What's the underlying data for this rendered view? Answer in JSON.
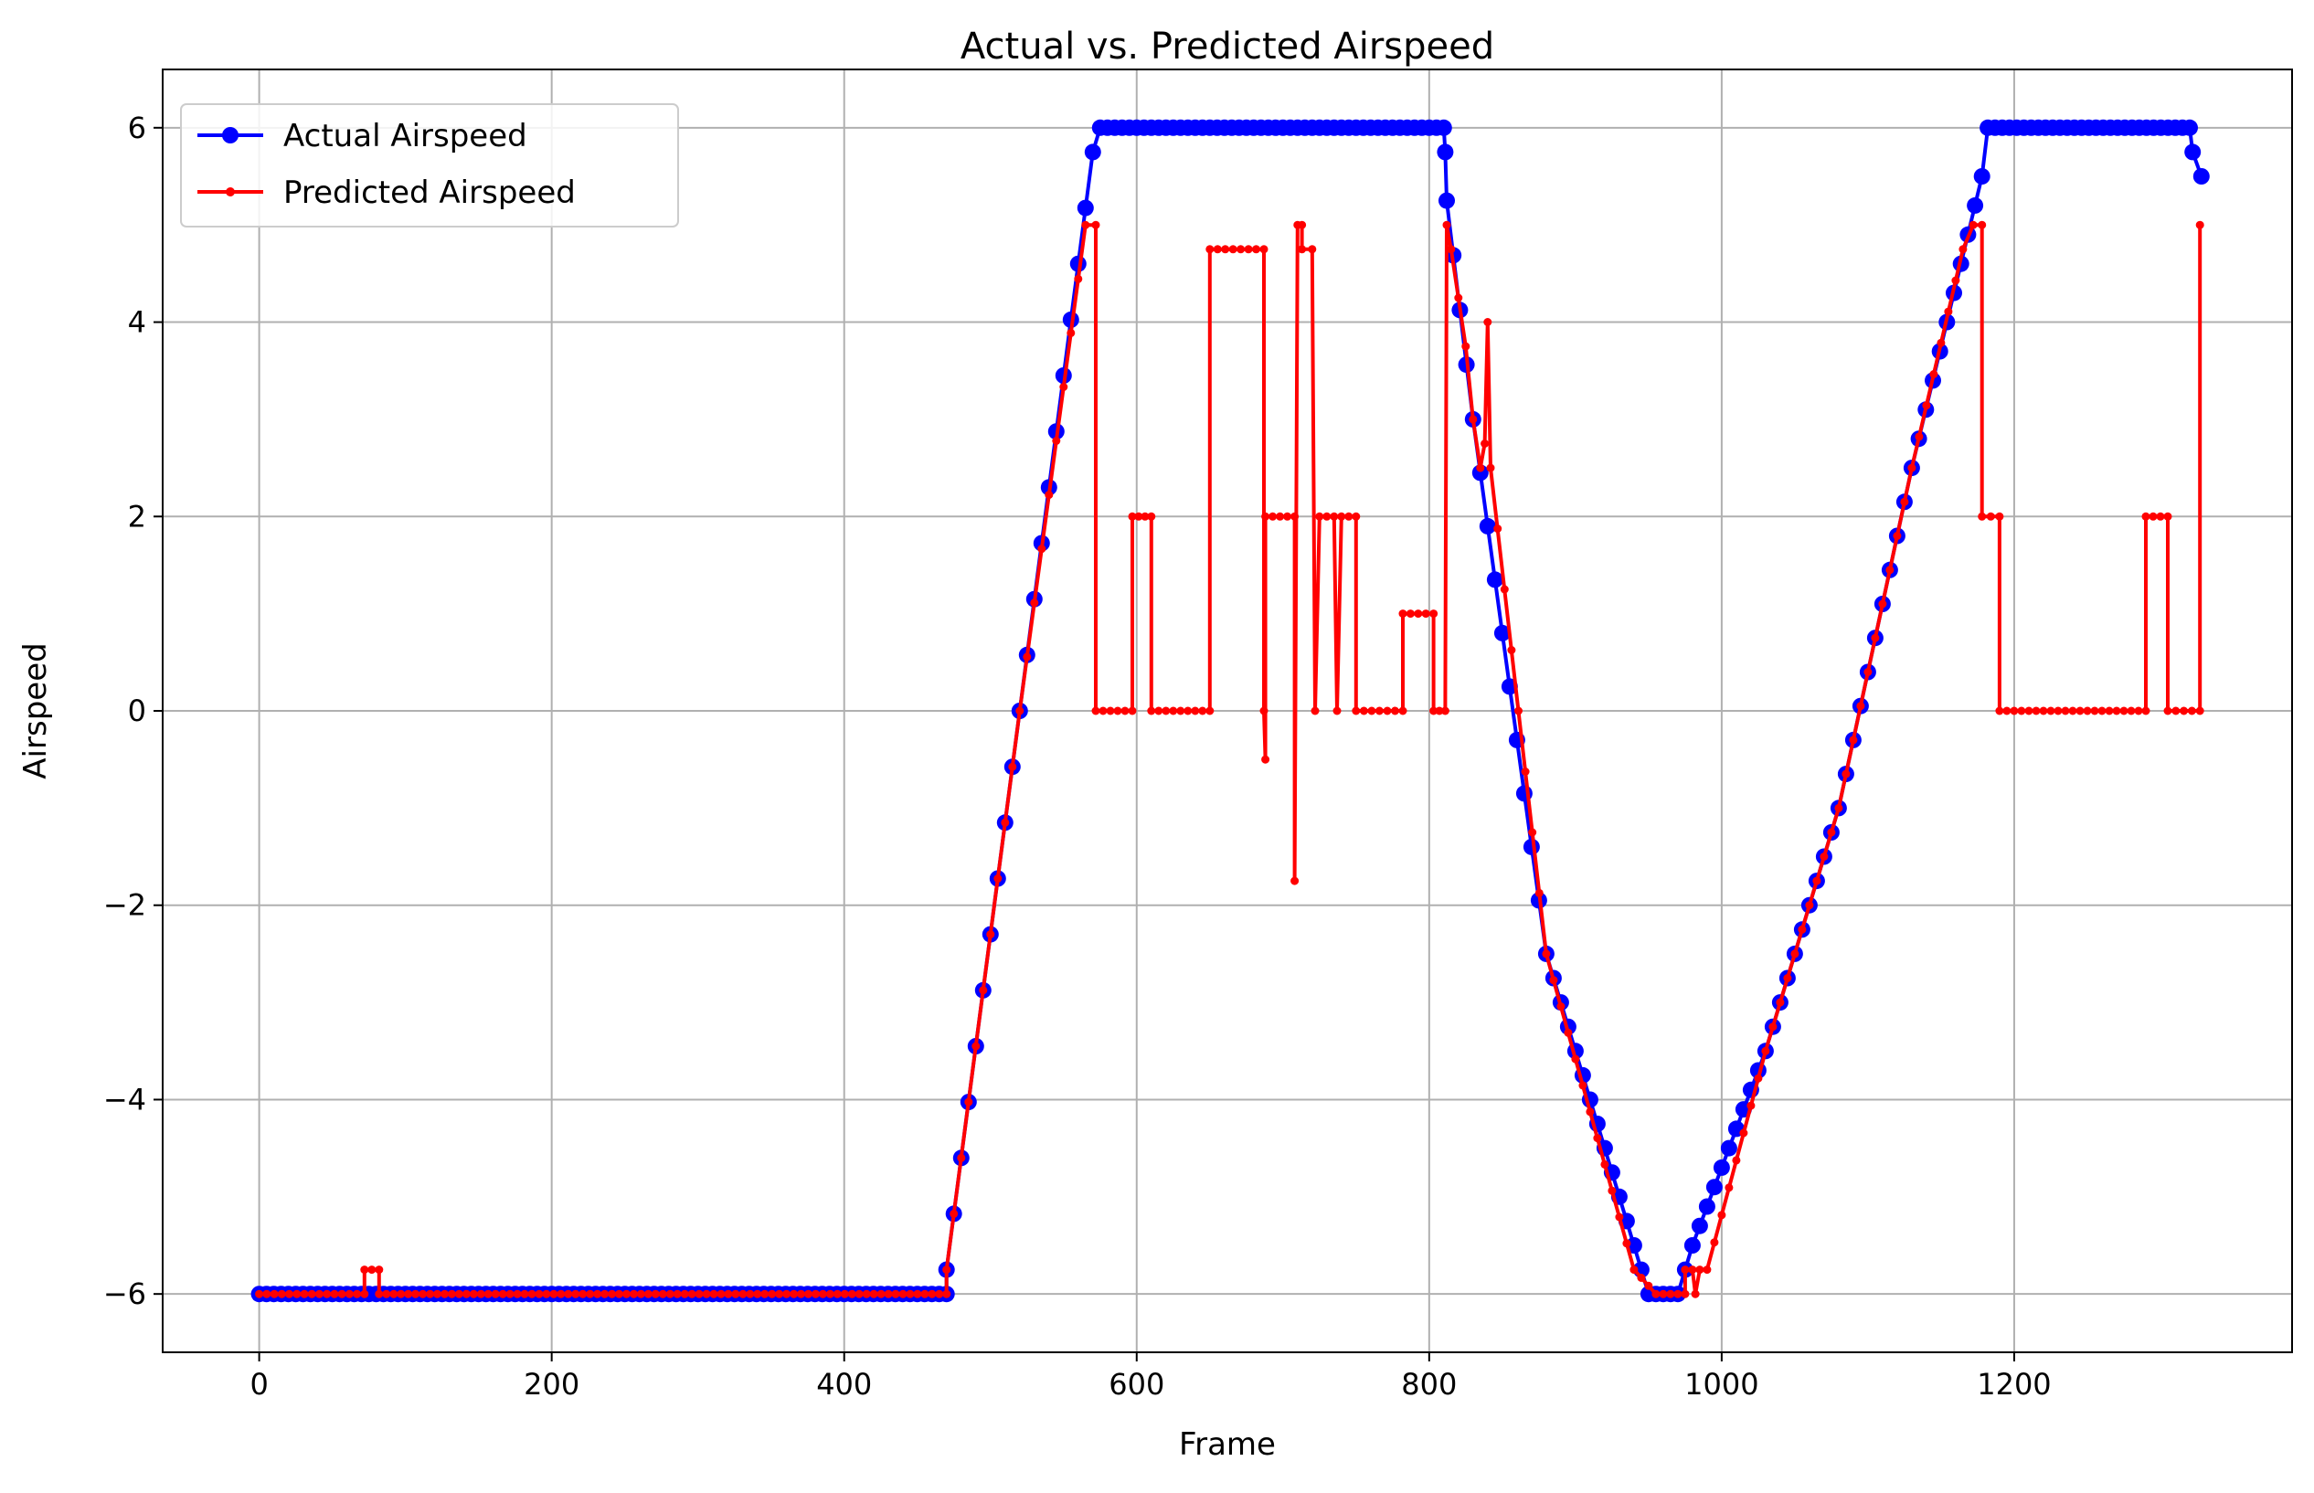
{
  "chart_data": {
    "type": "line",
    "title": "Actual vs. Predicted Airspeed",
    "xlabel": "Frame",
    "ylabel": "Airspeed",
    "xlim": [
      -66,
      1390
    ],
    "ylim": [
      -6.6,
      6.6
    ],
    "xticks": [
      0,
      200,
      400,
      600,
      800,
      1000,
      1200
    ],
    "yticks": [
      -6,
      -4,
      -2,
      0,
      2,
      4,
      6
    ],
    "ytick_labels": [
      "−6",
      "−4",
      "−2",
      "0",
      "2",
      "4",
      "6"
    ],
    "grid": true,
    "legend_position": "upper-left",
    "series": [
      {
        "name": "Actual Airspeed",
        "color": "#0000ff",
        "marker": "large-circle",
        "points": [
          [
            0,
            -6
          ],
          [
            470,
            -6
          ],
          [
            470,
            -5.75
          ],
          [
            520,
            0
          ],
          [
            570,
            5.75
          ],
          [
            575,
            6
          ],
          [
            810,
            6
          ],
          [
            811,
            5.75
          ],
          [
            812,
            5.25
          ],
          [
            830,
            3
          ],
          [
            880,
            -2.5
          ],
          [
            950,
            -6
          ],
          [
            970,
            -6
          ],
          [
            980,
            -5.5
          ],
          [
            1030,
            -3.5
          ],
          [
            1080,
            -1
          ],
          [
            1130,
            2.5
          ],
          [
            1178,
            5.5
          ],
          [
            1182,
            6
          ],
          [
            1320,
            6
          ],
          [
            1322,
            5.75
          ],
          [
            1328,
            5.5
          ]
        ]
      },
      {
        "name": "Predicted Airspeed",
        "color": "#ff0000",
        "marker": "small-dot",
        "points": [
          [
            0,
            -6
          ],
          [
            72,
            -6
          ],
          [
            72,
            -5.75
          ],
          [
            82,
            -5.75
          ],
          [
            82,
            -6
          ],
          [
            470,
            -6
          ],
          [
            470,
            -5.75
          ],
          [
            520,
            0
          ],
          [
            565,
            5
          ],
          [
            572,
            5
          ],
          [
            572,
            0
          ],
          [
            597,
            0
          ],
          [
            597,
            2
          ],
          [
            610,
            2
          ],
          [
            610,
            0
          ],
          [
            650,
            0
          ],
          [
            650,
            4.75
          ],
          [
            687,
            4.75
          ],
          [
            687,
            0
          ],
          [
            688,
            -0.5
          ],
          [
            688,
            2
          ],
          [
            708,
            2
          ],
          [
            708,
            -1.75
          ],
          [
            710,
            5
          ],
          [
            713,
            5
          ],
          [
            713,
            4.75
          ],
          [
            720,
            4.75
          ],
          [
            722,
            0
          ],
          [
            725,
            2
          ],
          [
            735,
            2
          ],
          [
            737,
            0
          ],
          [
            740,
            2
          ],
          [
            750,
            2
          ],
          [
            750,
            0
          ],
          [
            782,
            0
          ],
          [
            782,
            1
          ],
          [
            803,
            1
          ],
          [
            803,
            0
          ],
          [
            811,
            0
          ],
          [
            812,
            5
          ],
          [
            815,
            4.75
          ],
          [
            820,
            4.25
          ],
          [
            825,
            3.75
          ],
          [
            830,
            3
          ],
          [
            835,
            2.5
          ],
          [
            838,
            2.75
          ],
          [
            840,
            4
          ],
          [
            842,
            2.5
          ],
          [
            880,
            -2.5
          ],
          [
            940,
            -5.75
          ],
          [
            955,
            -6
          ],
          [
            975,
            -6
          ],
          [
            975,
            -5.75
          ],
          [
            980,
            -5.75
          ],
          [
            982,
            -6
          ],
          [
            985,
            -5.75
          ],
          [
            990,
            -5.75
          ],
          [
            1030,
            -3.5
          ],
          [
            1080,
            -1
          ],
          [
            1130,
            2.5
          ],
          [
            1165,
            4.75
          ],
          [
            1172,
            5
          ],
          [
            1178,
            5
          ],
          [
            1178,
            2
          ],
          [
            1190,
            2
          ],
          [
            1190,
            0
          ],
          [
            1290,
            0
          ],
          [
            1290,
            2
          ],
          [
            1305,
            2
          ],
          [
            1305,
            0
          ],
          [
            1327,
            0
          ],
          [
            1327,
            5
          ]
        ]
      }
    ]
  }
}
